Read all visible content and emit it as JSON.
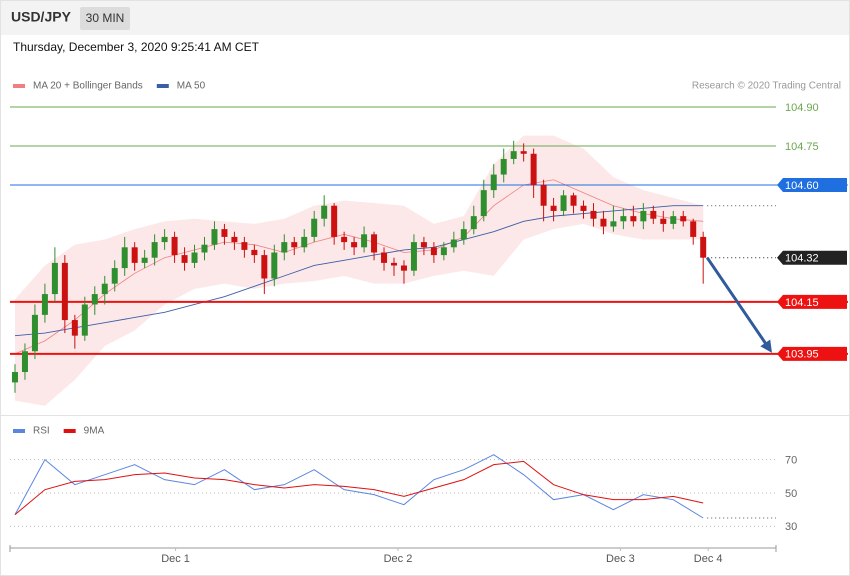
{
  "chart_data": {
    "type": "candlestick",
    "title": "USD/JPY",
    "timeframe": "30 MIN",
    "subtitle": "Thursday, December 3, 2020 9:25:41 AM CET",
    "credit": "Research © 2020 Trading Central",
    "up_color": "#2f8f2f",
    "down_color": "#cc1111",
    "open": [
      103.84,
      103.88,
      103.96,
      104.1,
      104.18,
      104.3,
      104.08,
      104.02,
      104.14,
      104.18,
      104.22,
      104.28,
      104.36,
      104.3,
      104.32,
      104.38,
      104.4,
      104.33,
      104.3,
      104.34,
      104.37,
      104.43,
      104.4,
      104.38,
      104.35,
      104.33,
      104.24,
      104.34,
      104.38,
      104.36,
      104.4,
      104.47,
      104.52,
      104.4,
      104.38,
      104.36,
      104.41,
      104.34,
      104.3,
      104.29,
      104.27,
      104.38,
      104.36,
      104.33,
      104.36,
      104.39,
      104.43,
      104.48,
      104.58,
      104.64,
      104.7,
      104.73,
      104.72,
      104.6,
      104.52,
      104.5,
      104.56,
      104.52,
      104.5,
      104.47,
      104.44,
      104.46,
      104.48,
      104.46,
      104.5,
      104.47,
      104.45,
      104.48,
      104.46,
      104.4
    ],
    "high": [
      103.91,
      103.99,
      104.14,
      104.22,
      104.36,
      104.33,
      104.1,
      104.17,
      104.21,
      104.25,
      104.31,
      104.4,
      104.38,
      104.35,
      104.41,
      104.43,
      104.42,
      104.36,
      104.37,
      104.4,
      104.46,
      104.45,
      104.42,
      104.4,
      104.37,
      104.35,
      104.37,
      104.41,
      104.4,
      104.43,
      104.5,
      104.56,
      104.53,
      104.42,
      104.4,
      104.44,
      104.42,
      104.36,
      104.32,
      104.31,
      104.41,
      104.4,
      104.38,
      104.38,
      104.42,
      104.46,
      104.52,
      104.62,
      104.68,
      104.74,
      104.77,
      104.76,
      104.74,
      104.62,
      104.55,
      104.58,
      104.57,
      104.54,
      104.53,
      104.5,
      104.52,
      104.51,
      104.52,
      104.53,
      104.52,
      104.5,
      104.5,
      104.5,
      104.47,
      104.42
    ],
    "low": [
      103.8,
      103.85,
      103.93,
      104.07,
      104.15,
      104.03,
      103.97,
      104.0,
      104.1,
      104.14,
      104.19,
      104.25,
      104.27,
      104.28,
      104.29,
      104.35,
      104.3,
      104.27,
      104.28,
      104.31,
      104.35,
      104.37,
      104.35,
      104.32,
      104.3,
      104.18,
      104.21,
      104.31,
      104.33,
      104.34,
      104.38,
      104.44,
      104.37,
      104.35,
      104.33,
      104.34,
      104.31,
      104.27,
      104.25,
      104.22,
      104.25,
      104.33,
      104.3,
      104.31,
      104.34,
      104.37,
      104.41,
      104.46,
      104.55,
      104.61,
      104.68,
      104.69,
      104.55,
      104.46,
      104.46,
      104.48,
      104.49,
      104.47,
      104.44,
      104.41,
      104.42,
      104.43,
      104.44,
      104.43,
      104.45,
      104.42,
      104.43,
      104.44,
      104.37,
      104.22
    ],
    "close": [
      103.88,
      103.96,
      104.1,
      104.18,
      104.3,
      104.08,
      104.02,
      104.14,
      104.18,
      104.22,
      104.28,
      104.36,
      104.3,
      104.32,
      104.38,
      104.4,
      104.33,
      104.3,
      104.34,
      104.37,
      104.43,
      104.4,
      104.38,
      104.35,
      104.33,
      104.24,
      104.34,
      104.38,
      104.36,
      104.4,
      104.47,
      104.52,
      104.4,
      104.38,
      104.36,
      104.41,
      104.34,
      104.3,
      104.29,
      104.27,
      104.38,
      104.36,
      104.33,
      104.36,
      104.39,
      104.43,
      104.48,
      104.58,
      104.64,
      104.7,
      104.73,
      104.72,
      104.6,
      104.52,
      104.5,
      104.56,
      104.52,
      104.5,
      104.47,
      104.44,
      104.46,
      104.48,
      104.46,
      104.5,
      104.47,
      104.45,
      104.48,
      104.46,
      104.4,
      104.32
    ],
    "lines_x": [
      0,
      3,
      6,
      9,
      12,
      15,
      18,
      21,
      24,
      27,
      30,
      33,
      36,
      39,
      42,
      45,
      48,
      51,
      54,
      57,
      60,
      63,
      66,
      69
    ],
    "series": [
      {
        "name": "MA 20 + Bollinger Bands",
        "color": "#f08080",
        "values": [
          103.95,
          104.0,
          104.08,
          104.18,
          104.26,
          104.32,
          104.35,
          104.38,
          104.37,
          104.34,
          104.38,
          104.41,
          104.38,
          104.34,
          104.35,
          104.4,
          104.52,
          104.6,
          104.62,
          104.57,
          104.52,
          104.49,
          104.47,
          104.46
        ],
        "upper": [
          104.16,
          104.29,
          104.37,
          104.39,
          104.43,
          104.46,
          104.47,
          104.46,
          104.45,
          104.47,
          104.52,
          104.54,
          104.53,
          104.52,
          104.45,
          104.48,
          104.68,
          104.79,
          104.79,
          104.74,
          104.63,
          104.58,
          104.55,
          104.52
        ],
        "lower": [
          103.77,
          103.75,
          103.85,
          103.98,
          104.04,
          104.14,
          104.2,
          104.22,
          104.2,
          104.22,
          104.23,
          104.25,
          104.22,
          104.22,
          104.25,
          104.27,
          104.25,
          104.39,
          104.43,
          104.45,
          104.41,
          104.39,
          104.39,
          104.39
        ]
      },
      {
        "name": "MA 50",
        "color": "#3a5fa8",
        "values": [
          104.02,
          104.03,
          104.05,
          104.07,
          104.09,
          104.11,
          104.14,
          104.17,
          104.21,
          104.25,
          104.29,
          104.31,
          104.33,
          104.35,
          104.36,
          104.39,
          104.42,
          104.46,
          104.48,
          104.49,
          104.5,
          104.51,
          104.52,
          104.52
        ]
      }
    ],
    "xlim": [
      -0.5,
      76.3
    ],
    "ylim": [
      103.73,
      104.95
    ],
    "xticks": [
      {
        "value": 16.1,
        "label": "Dec 1"
      },
      {
        "value": 38.4,
        "label": "Dec 2"
      },
      {
        "value": 60.7,
        "label": "Dec 3"
      },
      {
        "value": 69.5,
        "label": "Dec 4"
      }
    ],
    "levels": [
      {
        "value": 104.9,
        "label": "104.90",
        "color": "#6aa84f",
        "style": "thin",
        "tag": false
      },
      {
        "value": 104.75,
        "label": "104.75",
        "color": "#6aa84f",
        "style": "thin",
        "tag": false
      },
      {
        "value": 104.6,
        "label": "104.60",
        "color": "#1f6fe0",
        "style": "thin",
        "tag": true
      },
      {
        "value": 104.32,
        "label": "104.32",
        "color": "#222222",
        "style": "dotted",
        "tag": true
      },
      {
        "value": 104.15,
        "label": "104.15",
        "color": "#ee1111",
        "style": "thick",
        "tag": true
      },
      {
        "value": 103.95,
        "label": "103.95",
        "color": "#ee1111",
        "style": "thick",
        "tag": true
      }
    ],
    "arrow_color": "#2f5b9a",
    "rsi": {
      "series": [
        {
          "name": "RSI",
          "color": "#5b86e0",
          "values": [
            37,
            70,
            55,
            61,
            67,
            58,
            55,
            64,
            52,
            55,
            64,
            52,
            49,
            43,
            58,
            64,
            73,
            61,
            46,
            49,
            40,
            49,
            46,
            35
          ]
        },
        {
          "name": "9MA",
          "color": "#e01010",
          "values": [
            37,
            52,
            57,
            58,
            61,
            62,
            59,
            58,
            55,
            53,
            55,
            54,
            52,
            48,
            53,
            58,
            67,
            69,
            55,
            49,
            46,
            46,
            48,
            44
          ]
        }
      ],
      "ylim": [
        20,
        80
      ],
      "yticks": [
        70,
        50,
        30
      ]
    }
  }
}
